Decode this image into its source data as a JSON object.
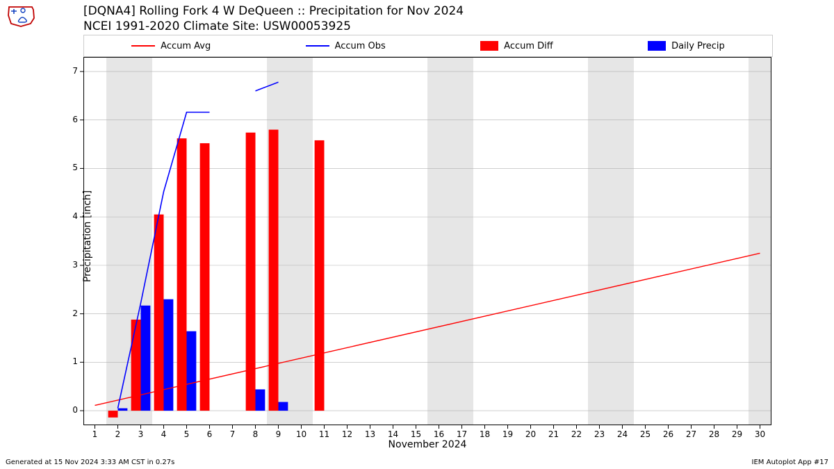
{
  "title_line1": "[DQNA4] Rolling Fork 4 W DeQueen :: Precipitation for Nov 2024",
  "title_line2": "NCEI 1991-2020 Climate Site: USW00053925",
  "ylabel": "Precipitation [inch]",
  "xlabel": "November 2024",
  "footer_left": "Generated at 15 Nov 2024 3:33 AM CST in 0.27s",
  "footer_right": "IEM Autoplot App #17",
  "legend": {
    "items": [
      {
        "label": "Accum Avg",
        "type": "line",
        "color": "#ff0000"
      },
      {
        "label": "Accum Obs",
        "type": "line",
        "color": "#0000ff"
      },
      {
        "label": "Accum Diff",
        "type": "patch",
        "color": "#ff0000"
      },
      {
        "label": "Daily Precip",
        "type": "patch",
        "color": "#0000ff"
      }
    ]
  },
  "chart": {
    "xlim": [
      0.5,
      30.5
    ],
    "ylim": [
      -0.3,
      7.3
    ],
    "yticks": [
      0,
      1,
      2,
      3,
      4,
      5,
      6,
      7
    ],
    "xticks": [
      1,
      2,
      3,
      4,
      5,
      6,
      7,
      8,
      9,
      10,
      11,
      12,
      13,
      14,
      15,
      16,
      17,
      18,
      19,
      20,
      21,
      22,
      23,
      24,
      25,
      26,
      27,
      28,
      29,
      30
    ],
    "grid_color": "#b0b0b0",
    "grid_width": 0.6,
    "background_color": "#ffffff",
    "weekend_shade_color": "#e6e6e6",
    "weekend_days": [
      [
        2,
        3
      ],
      [
        9,
        10
      ],
      [
        16,
        17
      ],
      [
        23,
        24
      ],
      [
        30,
        30
      ]
    ],
    "spine_color": "#000000",
    "tick_fontsize": 12,
    "label_fontsize": 14,
    "title_fontsize": 17,
    "bars_diff": {
      "color": "#ff0000",
      "width": 0.42,
      "offset": -0.21,
      "data": [
        {
          "x": 2,
          "y": -0.14
        },
        {
          "x": 3,
          "y": 1.88
        },
        {
          "x": 4,
          "y": 4.05
        },
        {
          "x": 5,
          "y": 5.62
        },
        {
          "x": 6,
          "y": 5.52
        },
        {
          "x": 8,
          "y": 5.74
        },
        {
          "x": 9,
          "y": 5.8
        },
        {
          "x": 11,
          "y": 5.58
        }
      ]
    },
    "bars_daily": {
      "color": "#0000ff",
      "width": 0.42,
      "offset": 0.21,
      "data": [
        {
          "x": 2,
          "y": 0.05
        },
        {
          "x": 3,
          "y": 2.17
        },
        {
          "x": 4,
          "y": 2.3
        },
        {
          "x": 5,
          "y": 1.64
        },
        {
          "x": 8,
          "y": 0.44
        },
        {
          "x": 9,
          "y": 0.18
        }
      ]
    },
    "line_avg": {
      "color": "#ff0000",
      "width": 1.4,
      "points": [
        {
          "x": 1,
          "y": 0.11
        },
        {
          "x": 30,
          "y": 3.25
        }
      ]
    },
    "line_obs": {
      "color": "#0000ff",
      "width": 1.6,
      "segments": [
        [
          {
            "x": 2,
            "y": 0.05
          },
          {
            "x": 3,
            "y": 2.22
          },
          {
            "x": 4,
            "y": 4.52
          },
          {
            "x": 5,
            "y": 6.16
          },
          {
            "x": 6,
            "y": 6.16
          }
        ],
        [
          {
            "x": 8,
            "y": 6.6
          },
          {
            "x": 9,
            "y": 6.78
          }
        ]
      ]
    }
  }
}
